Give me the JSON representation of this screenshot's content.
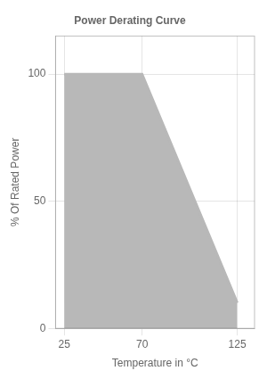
{
  "chart_data": {
    "type": "area",
    "title": "Power Derating Curve",
    "x_label": "Temperature in °C",
    "y_label": "% Of Rated Power",
    "x": [
      25,
      70,
      125
    ],
    "values": [
      100,
      100,
      10
    ],
    "color": "#b8b8b8",
    "xlim": [
      20,
      135
    ],
    "xticks": [
      25,
      70,
      125
    ],
    "ylim": [
      0,
      115
    ],
    "yticks": [
      0,
      50,
      100
    ],
    "grid": true
  }
}
